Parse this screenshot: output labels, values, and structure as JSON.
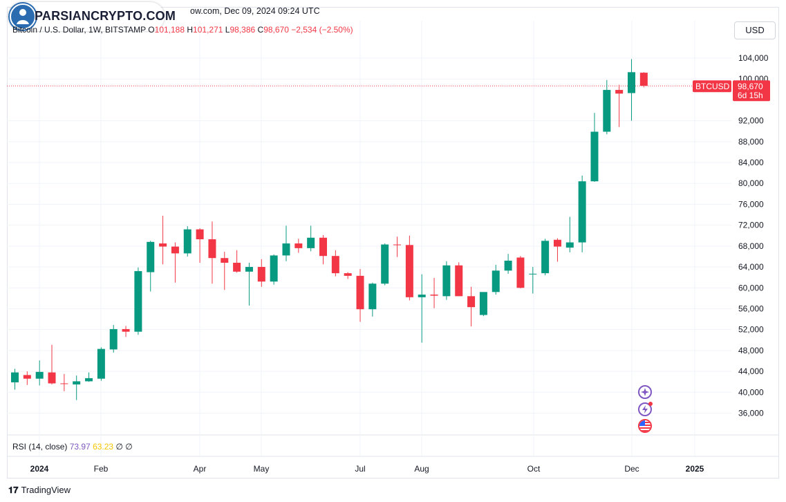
{
  "header": {
    "meta_text": "ow.com, Dec 09, 2024 09:24 UTC",
    "symbol": "Bitcoin / U.S. Dollar, 1W, BITSTAMP",
    "o_label": "O",
    "o_value": "101,188",
    "h_label": "H",
    "h_value": "101,271",
    "l_label": "L",
    "l_value": "98,386",
    "c_label": "C",
    "c_value": "98,670",
    "change": "−2,534 (−2.50%)"
  },
  "watermark": {
    "logo_text": "PARSIANCRYPTO.COM"
  },
  "currency_button": "USD",
  "price_tag": {
    "label": "BTCUSD",
    "value": "98,670",
    "countdown": "6d 15h"
  },
  "rsi": {
    "label": "RSI (14, close)",
    "value1": "73.97",
    "value2": "63.23",
    "na1": "∅",
    "na2": "∅"
  },
  "footer": {
    "brand": "TradingView"
  },
  "colors": {
    "up": "#089981",
    "down": "#f23645",
    "grid": "#f0f3fa",
    "last_price_line": "#f23645"
  },
  "icons": [
    "sparkle-icon",
    "lightning-icon",
    "us-flag-icon"
  ],
  "chart_data": {
    "type": "candlestick",
    "title": "Bitcoin / U.S. Dollar, 1W, BITSTAMP",
    "y_ticks": [
      "36,000",
      "40,000",
      "44,000",
      "48,000",
      "52,000",
      "56,000",
      "60,000",
      "64,000",
      "68,000",
      "72,000",
      "76,000",
      "80,000",
      "84,000",
      "88,000",
      "92,000",
      "100,000",
      "104,000"
    ],
    "y_tick_values": [
      36000,
      40000,
      44000,
      48000,
      52000,
      56000,
      60000,
      64000,
      68000,
      72000,
      76000,
      80000,
      84000,
      88000,
      92000,
      100000,
      104000
    ],
    "x_labels": [
      "2024",
      "Feb",
      "Apr",
      "May",
      "Jul",
      "Aug",
      "Oct",
      "Dec",
      "2025"
    ],
    "x_label_bold": [
      "2024",
      "2025"
    ],
    "ylim": [
      31500,
      107000
    ],
    "last_price": 98670,
    "candles": [
      {
        "o": 41900,
        "h": 44500,
        "l": 40500,
        "c": 43800
      },
      {
        "o": 43300,
        "h": 44000,
        "l": 41400,
        "c": 42600
      },
      {
        "o": 42600,
        "h": 46100,
        "l": 41300,
        "c": 43900
      },
      {
        "o": 43800,
        "h": 49100,
        "l": 41500,
        "c": 41700
      },
      {
        "o": 41700,
        "h": 43500,
        "l": 40200,
        "c": 41600
      },
      {
        "o": 41500,
        "h": 43200,
        "l": 38500,
        "c": 42100
      },
      {
        "o": 42100,
        "h": 43800,
        "l": 42000,
        "c": 42700
      },
      {
        "o": 42600,
        "h": 48600,
        "l": 42200,
        "c": 48300
      },
      {
        "o": 48200,
        "h": 52900,
        "l": 47600,
        "c": 52100
      },
      {
        "o": 52100,
        "h": 52700,
        "l": 50600,
        "c": 51600
      },
      {
        "o": 51600,
        "h": 63900,
        "l": 51000,
        "c": 63200
      },
      {
        "o": 63000,
        "h": 69000,
        "l": 59300,
        "c": 68800
      },
      {
        "o": 68500,
        "h": 73800,
        "l": 64500,
        "c": 67900
      },
      {
        "o": 67900,
        "h": 68700,
        "l": 61000,
        "c": 66600
      },
      {
        "o": 66600,
        "h": 71800,
        "l": 66000,
        "c": 71200
      },
      {
        "o": 71200,
        "h": 71400,
        "l": 64800,
        "c": 69300
      },
      {
        "o": 69300,
        "h": 72700,
        "l": 60800,
        "c": 65700
      },
      {
        "o": 65700,
        "h": 66900,
        "l": 59600,
        "c": 64800
      },
      {
        "o": 64800,
        "h": 67200,
        "l": 62900,
        "c": 63100
      },
      {
        "o": 63100,
        "h": 64800,
        "l": 56600,
        "c": 64000
      },
      {
        "o": 64000,
        "h": 65500,
        "l": 60200,
        "c": 61200
      },
      {
        "o": 61200,
        "h": 66400,
        "l": 60600,
        "c": 66200
      },
      {
        "o": 66200,
        "h": 71900,
        "l": 65100,
        "c": 68500
      },
      {
        "o": 68500,
        "h": 69400,
        "l": 66700,
        "c": 67600
      },
      {
        "o": 67600,
        "h": 71900,
        "l": 67000,
        "c": 69600
      },
      {
        "o": 69600,
        "h": 70100,
        "l": 64500,
        "c": 66100
      },
      {
        "o": 66100,
        "h": 67200,
        "l": 62200,
        "c": 62800
      },
      {
        "o": 62800,
        "h": 63000,
        "l": 61700,
        "c": 62300
      },
      {
        "o": 62300,
        "h": 63600,
        "l": 53500,
        "c": 55900
      },
      {
        "o": 55900,
        "h": 61000,
        "l": 54500,
        "c": 60800
      },
      {
        "o": 60800,
        "h": 68500,
        "l": 60500,
        "c": 68300
      },
      {
        "o": 68300,
        "h": 69800,
        "l": 65900,
        "c": 68200
      },
      {
        "o": 68200,
        "h": 70000,
        "l": 57600,
        "c": 58200
      },
      {
        "o": 58200,
        "h": 62600,
        "l": 49500,
        "c": 58700
      },
      {
        "o": 58700,
        "h": 61900,
        "l": 56100,
        "c": 58500
      },
      {
        "o": 58400,
        "h": 65100,
        "l": 57700,
        "c": 64300
      },
      {
        "o": 64300,
        "h": 64900,
        "l": 58800,
        "c": 58400
      },
      {
        "o": 58400,
        "h": 60200,
        "l": 52600,
        "c": 56300
      },
      {
        "o": 54800,
        "h": 58900,
        "l": 54600,
        "c": 59200
      },
      {
        "o": 59200,
        "h": 64400,
        "l": 58700,
        "c": 63300
      },
      {
        "o": 63300,
        "h": 66500,
        "l": 62700,
        "c": 65200
      },
      {
        "o": 65800,
        "h": 66100,
        "l": 59900,
        "c": 60000
      },
      {
        "o": 62600,
        "h": 64000,
        "l": 58900,
        "c": 62700
      },
      {
        "o": 62800,
        "h": 69400,
        "l": 62400,
        "c": 69000
      },
      {
        "o": 69200,
        "h": 69500,
        "l": 65000,
        "c": 67900
      },
      {
        "o": 67700,
        "h": 73600,
        "l": 66800,
        "c": 68700
      },
      {
        "o": 68700,
        "h": 81500,
        "l": 66800,
        "c": 80400
      },
      {
        "o": 80400,
        "h": 93500,
        "l": 80300,
        "c": 89900
      },
      {
        "o": 89900,
        "h": 99800,
        "l": 89400,
        "c": 97900
      },
      {
        "o": 97900,
        "h": 98900,
        "l": 90800,
        "c": 97200
      },
      {
        "o": 97300,
        "h": 103800,
        "l": 92000,
        "c": 101300
      },
      {
        "o": 101200,
        "h": 101300,
        "l": 98400,
        "c": 98700
      }
    ]
  }
}
